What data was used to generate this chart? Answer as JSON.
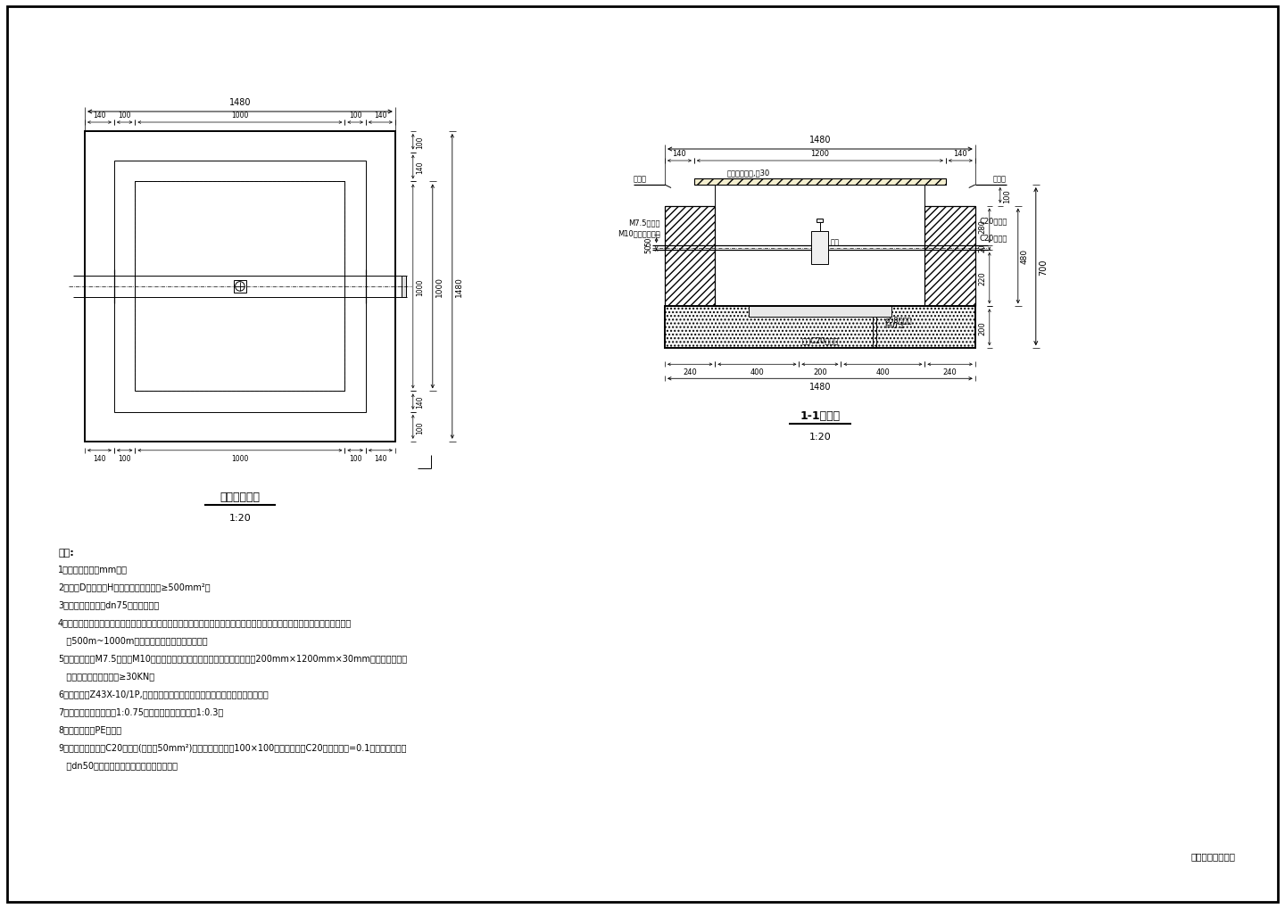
{
  "bg_color": "#ffffff",
  "line_color": "#000000",
  "title1": "闸阀井平面图",
  "title2": "1-1剖面图",
  "scale": "1:20",
  "notes_title": "说明:",
  "note_lines": [
    "1．图中尺寸均以mm计。",
    "2．图中D为管径，H为管顶以上覆土厚度≥500mm²。",
    "3．本图尺寸适用于dn75以上的管径。",
    "4．在管道转弯角度变大处，管径断面变化处以及建出支管处设置一座闸阀井，管道平直段每隔一段距离设置检查井，一般闸距为500m~1000m，最大间距根据具体情况确定。",
    "5．检修井采用M7.5砂浆，M10砂浆勾外抹面，盖板为复合树脂盖板，尺寸为200mm×1200mm×30mm，本图在不超重车辆过下使用，井承重≥30KN。",
    "6．闸阀选用Z43X-10/1P,软密封楔墨橡胶闸阀，压力级度不小于钢材批准等级。",
    "7．上方临时开挖坡换取1:0.75，石方临时开挖坡换取1:0.3。",
    "8．排水管采用PE材质。",
    "9．闸阀井底板采用C20砼底板(厚度为50mm²)，在底板一侧预留100×100排水孔位置，C20砼底板坡度=0.1，坡向排水孔，经dn50排水管将污排水接入井外排水系统。"
  ],
  "corner_note": "闸阀井平、剖面图"
}
